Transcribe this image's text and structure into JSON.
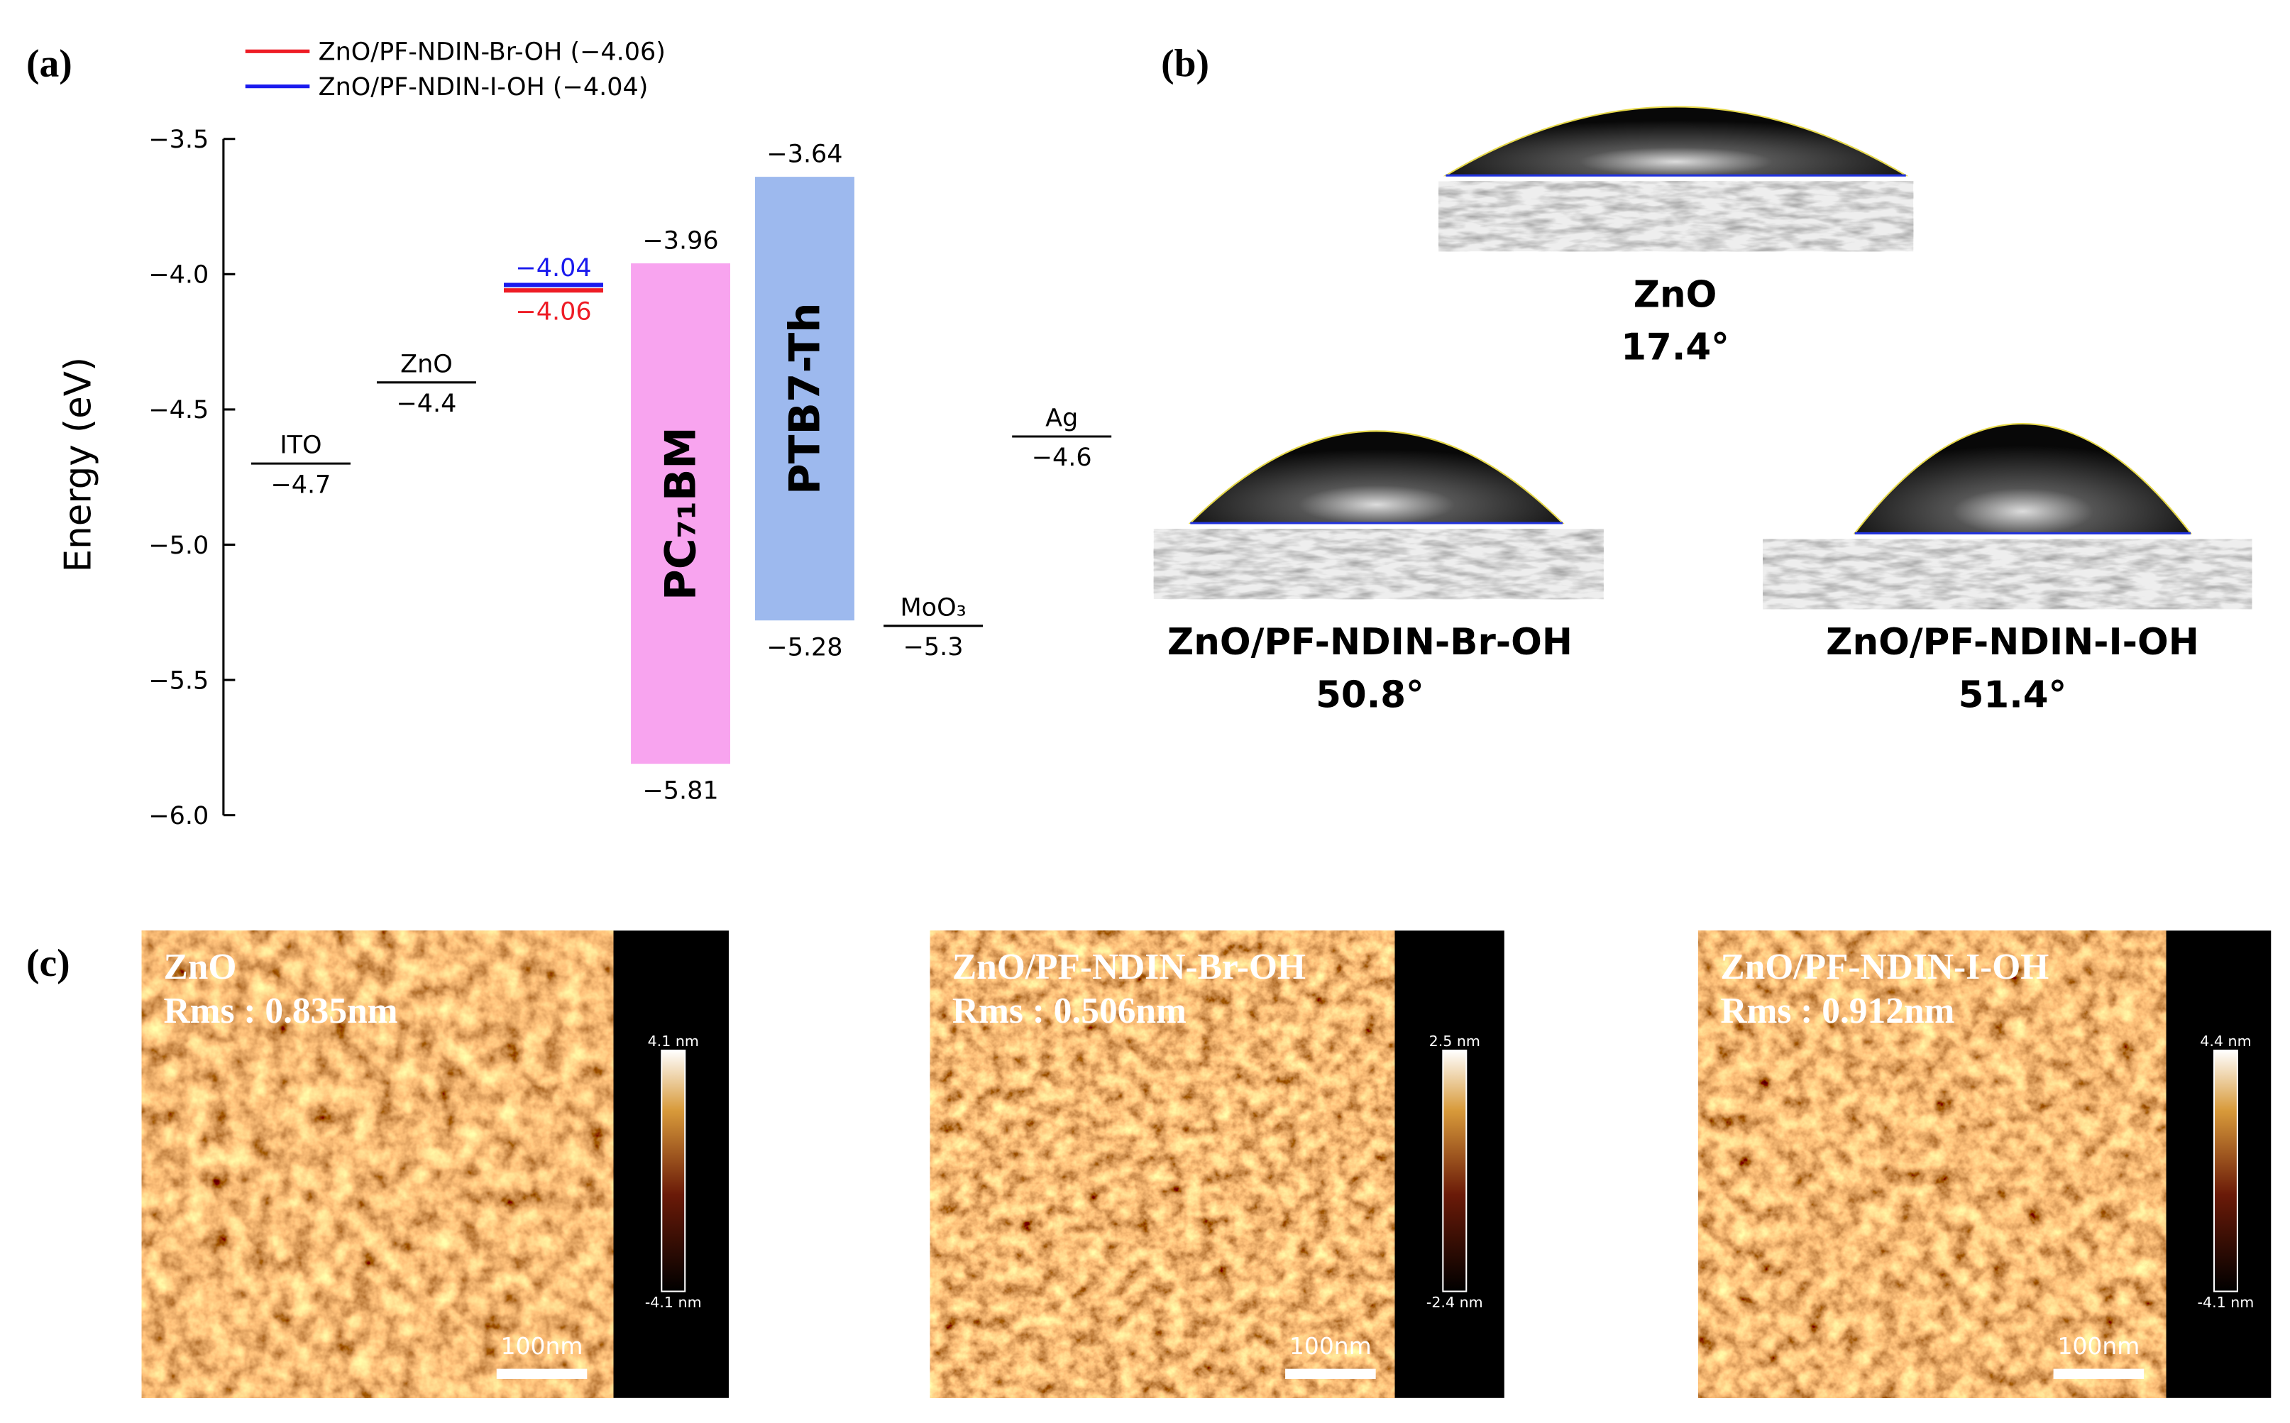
{
  "chart_data": {
    "type": "energy_level",
    "panel_label": "(a)",
    "ylabel": "Energy (eV)",
    "ylim": [
      -6.0,
      -3.5
    ],
    "yticks": [
      {
        "value": -3.5,
        "label": "−3.5"
      },
      {
        "value": -4.0,
        "label": "−4.0"
      },
      {
        "value": -4.5,
        "label": "−4.5"
      },
      {
        "value": -5.0,
        "label": "−5.0"
      },
      {
        "value": -5.5,
        "label": "−5.5"
      },
      {
        "value": -6.0,
        "label": "−6.0"
      }
    ],
    "legend": "top-left",
    "series": [
      {
        "name": "ITO",
        "color": "#000000",
        "values": [
          -4.7
        ],
        "value_labels": [
          "−4.7"
        ]
      },
      {
        "name": "ZnO",
        "color": "#000000",
        "values": [
          -4.4
        ],
        "value_labels": [
          "−4.4"
        ]
      },
      {
        "name": "ZnO/PF-NDIN-Br-OH (−4.06)",
        "color": "#ee1c25",
        "values": [
          -4.06
        ],
        "value_labels": [
          "−4.06"
        ]
      },
      {
        "name": "ZnO/PF-NDIN-I-OH (−4.04)",
        "color": "#1a1aee",
        "values": [
          -4.04
        ],
        "value_labels": [
          "−4.04"
        ]
      },
      {
        "name": "PC₇₁BM",
        "color": "#f8a4ef",
        "values": [
          -3.96,
          -5.81
        ],
        "value_labels": [
          "−3.96",
          "−5.81"
        ]
      },
      {
        "name": "PTB7-Th",
        "color": "#9db9ee",
        "values": [
          -3.64,
          -5.28
        ],
        "value_labels": [
          "−3.64",
          "−5.28"
        ]
      },
      {
        "name": "MoO₃",
        "color": "#000000",
        "values": [
          -5.3
        ],
        "value_labels": [
          "−5.3"
        ]
      },
      {
        "name": "Ag",
        "color": "#000000",
        "values": [
          -4.6
        ],
        "value_labels": [
          "−4.6"
        ]
      }
    ]
  },
  "panel_b": {
    "label": "(b)",
    "samples": [
      {
        "name": "ZnO",
        "angle": "17.4°"
      },
      {
        "name": "ZnO/PF-NDIN-Br-OH",
        "angle": "50.8°"
      },
      {
        "name": "ZnO/PF-NDIN-I-OH",
        "angle": "51.4°"
      }
    ]
  },
  "panel_c": {
    "label": "(c)",
    "images": [
      {
        "name": "ZnO",
        "rms": "Rms : 0.835nm",
        "scale_max": "4.1 nm",
        "scale_min": "-4.1 nm",
        "scale_bar": "100nm"
      },
      {
        "name": "ZnO/PF-NDIN-Br-OH",
        "rms": "Rms : 0.506nm",
        "scale_max": "2.5 nm",
        "scale_min": "-2.4 nm",
        "scale_bar": "100nm"
      },
      {
        "name": "ZnO/PF-NDIN-I-OH",
        "rms": "Rms : 0.912nm",
        "scale_max": "4.4 nm",
        "scale_min": "-4.1 nm",
        "scale_bar": "100nm"
      }
    ]
  }
}
